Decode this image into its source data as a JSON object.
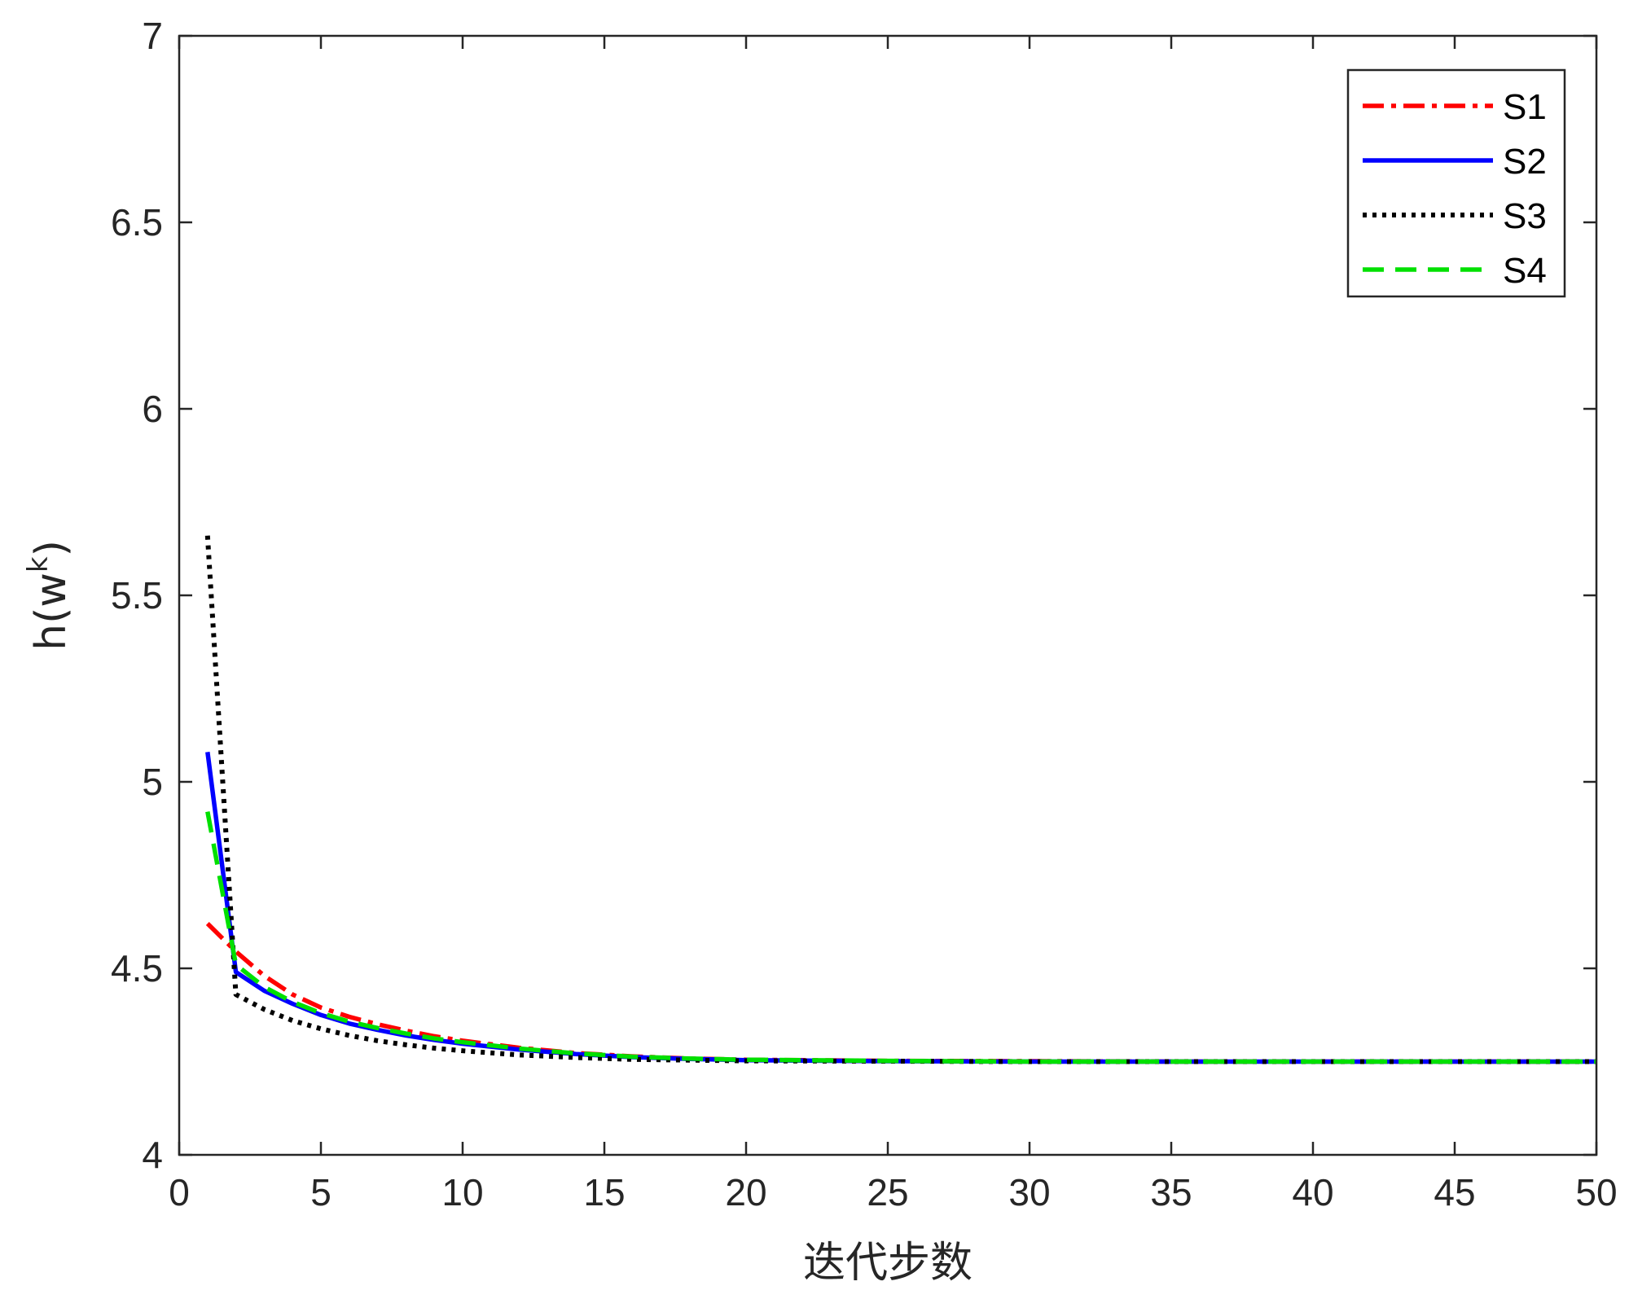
{
  "chart_data": {
    "type": "line",
    "xlabel": "迭代步数",
    "ylabel": "h(w",
    "ylabel_sup": "k",
    "ylabel_close": ")",
    "xlim": [
      0,
      50
    ],
    "ylim": [
      4,
      7
    ],
    "xticks": [
      0,
      5,
      10,
      15,
      20,
      25,
      30,
      35,
      40,
      45,
      50
    ],
    "yticks": [
      4,
      4.5,
      5,
      5.5,
      6,
      6.5,
      7
    ],
    "ytick_labels": [
      "4",
      "4.5",
      "5",
      "5.5",
      "6",
      "6.5",
      "7"
    ],
    "grid": false,
    "legend_position": "top-right",
    "series": [
      {
        "name": "S1",
        "color": "#ff0000",
        "style": "dashdot",
        "x": [
          1,
          2,
          3,
          4,
          5,
          6,
          7,
          8,
          9,
          10,
          12,
          14,
          16,
          18,
          20,
          25,
          30,
          35,
          40,
          45,
          50
        ],
        "y": [
          4.62,
          4.545,
          4.48,
          4.43,
          4.395,
          4.37,
          4.35,
          4.333,
          4.318,
          4.306,
          4.287,
          4.273,
          4.264,
          4.258,
          4.255,
          4.252,
          4.251,
          4.25,
          4.25,
          4.25,
          4.25
        ]
      },
      {
        "name": "S2",
        "color": "#0000ff",
        "style": "solid",
        "x": [
          1,
          2,
          3,
          4,
          5,
          6,
          7,
          8,
          9,
          10,
          12,
          14,
          16,
          18,
          20,
          25,
          30,
          35,
          40,
          45,
          50
        ],
        "y": [
          5.08,
          4.49,
          4.44,
          4.405,
          4.375,
          4.352,
          4.335,
          4.32,
          4.308,
          4.298,
          4.282,
          4.27,
          4.262,
          4.257,
          4.254,
          4.251,
          4.25,
          4.25,
          4.25,
          4.25,
          4.25
        ]
      },
      {
        "name": "S3",
        "color": "#000000",
        "style": "dotted",
        "x": [
          1,
          2,
          3,
          4,
          5,
          6,
          7,
          8,
          9,
          10,
          12,
          14,
          16,
          18,
          20,
          25,
          30,
          35,
          40,
          45,
          50
        ],
        "y": [
          5.66,
          4.43,
          4.39,
          4.36,
          4.338,
          4.32,
          4.306,
          4.295,
          4.286,
          4.279,
          4.268,
          4.261,
          4.256,
          4.254,
          4.252,
          4.251,
          4.25,
          4.25,
          4.25,
          4.25,
          4.25
        ]
      },
      {
        "name": "S4",
        "color": "#00e000",
        "style": "dashed",
        "x": [
          1,
          2,
          3,
          4,
          5,
          6,
          7,
          8,
          9,
          10,
          12,
          14,
          16,
          18,
          20,
          25,
          30,
          35,
          40,
          45,
          50
        ],
        "y": [
          4.92,
          4.51,
          4.45,
          4.41,
          4.38,
          4.357,
          4.34,
          4.325,
          4.312,
          4.302,
          4.285,
          4.272,
          4.263,
          4.258,
          4.255,
          4.252,
          4.25,
          4.25,
          4.25,
          4.25,
          4.25
        ]
      }
    ]
  }
}
